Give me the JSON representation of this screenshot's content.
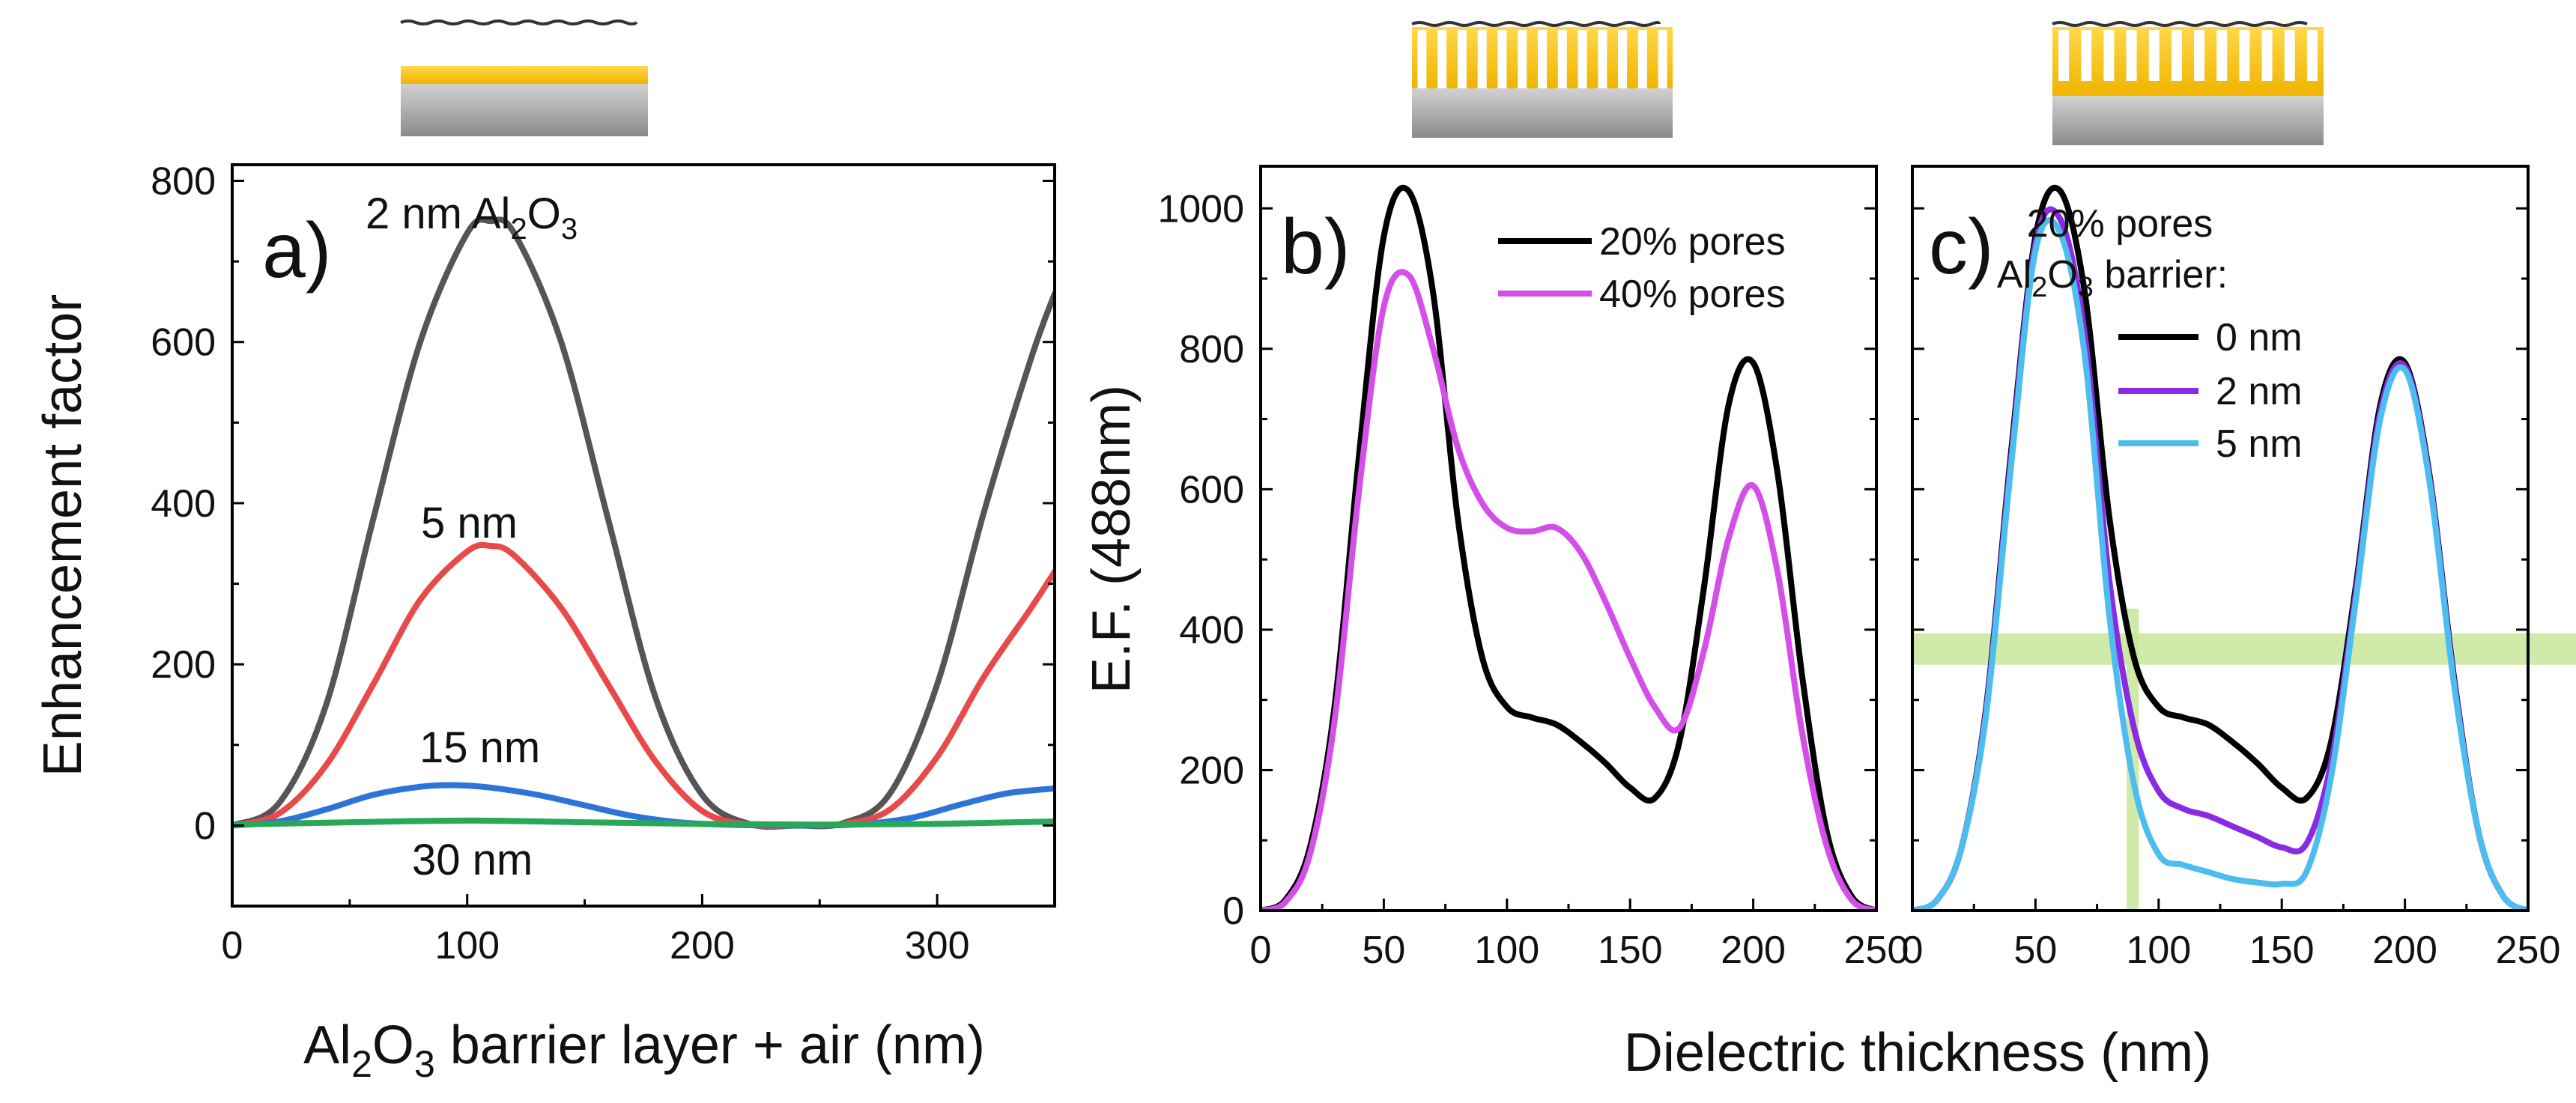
{
  "chart_data": [
    {
      "id": "a",
      "type": "line",
      "panel_label": "a)",
      "xlabel": "Al2O3 barrier layer + air (nm)",
      "ylabel": "Enhancement factor",
      "xlim": [
        0,
        350
      ],
      "ylim": [
        -100,
        820
      ],
      "xticks": [
        0,
        100,
        200,
        300
      ],
      "yticks": [
        0,
        200,
        400,
        600,
        800
      ],
      "series": [
        {
          "name": "2 nm Al2O3",
          "color": "#555555",
          "x": [
            0,
            20,
            40,
            60,
            80,
            100,
            110,
            120,
            140,
            160,
            180,
            200,
            220,
            240,
            260,
            280,
            300,
            320,
            340,
            350
          ],
          "y": [
            0,
            28,
            150,
            380,
            600,
            735,
            750,
            735,
            600,
            380,
            160,
            38,
            2,
            0,
            3,
            40,
            175,
            390,
            580,
            660
          ]
        },
        {
          "name": "5 nm",
          "color": "#e84a4a",
          "x": [
            0,
            20,
            40,
            60,
            80,
            100,
            110,
            120,
            140,
            160,
            180,
            200,
            220,
            240,
            260,
            280,
            300,
            320,
            340,
            350
          ],
          "y": [
            0,
            15,
            75,
            175,
            280,
            340,
            347,
            335,
            270,
            175,
            80,
            18,
            1,
            0,
            2,
            20,
            85,
            185,
            270,
            315
          ]
        },
        {
          "name": "15 nm",
          "color": "#2d74d8",
          "x": [
            0,
            20,
            40,
            60,
            80,
            95,
            110,
            130,
            150,
            170,
            190,
            210,
            230,
            250,
            270,
            290,
            310,
            330,
            350
          ],
          "y": [
            0,
            5,
            20,
            38,
            48,
            50,
            47,
            38,
            25,
            12,
            4,
            1,
            0,
            0,
            2,
            10,
            26,
            40,
            46
          ]
        },
        {
          "name": "30 nm",
          "color": "#2aa85a",
          "x": [
            0,
            50,
            100,
            150,
            200,
            250,
            300,
            350
          ],
          "y": [
            1,
            4,
            6,
            4,
            2,
            1,
            2,
            5
          ]
        }
      ],
      "annotations": [
        {
          "text": "2 nm Al2O3"
        },
        {
          "text": "5 nm"
        },
        {
          "text": "15 nm"
        },
        {
          "text": "30 nm"
        }
      ]
    },
    {
      "id": "b",
      "type": "line",
      "panel_label": "b)",
      "ylabel": "E.F. (488nm)",
      "xlim": [
        0,
        250
      ],
      "ylim": [
        0,
        1060
      ],
      "xticks": [
        0,
        50,
        100,
        150,
        200,
        250
      ],
      "yticks": [
        0,
        200,
        400,
        600,
        800,
        1000
      ],
      "legend": "top-right",
      "series": [
        {
          "name": "20% pores",
          "color": "#000000",
          "x": [
            0,
            10,
            20,
            30,
            40,
            50,
            60,
            70,
            80,
            90,
            100,
            110,
            120,
            130,
            140,
            150,
            160,
            170,
            180,
            190,
            200,
            210,
            220,
            230,
            240,
            250
          ],
          "y": [
            0,
            15,
            90,
            290,
            650,
            960,
            1025,
            880,
            560,
            360,
            290,
            275,
            265,
            240,
            210,
            175,
            160,
            240,
            460,
            720,
            780,
            620,
            330,
            110,
            20,
            0
          ]
        },
        {
          "name": "40% pores",
          "color": "#d44ee8",
          "x": [
            0,
            10,
            20,
            30,
            40,
            50,
            60,
            70,
            80,
            90,
            100,
            110,
            120,
            130,
            140,
            150,
            160,
            170,
            180,
            190,
            200,
            210,
            220,
            230,
            240,
            250
          ],
          "y": [
            0,
            12,
            80,
            270,
            600,
            860,
            905,
            800,
            660,
            580,
            545,
            540,
            545,
            510,
            440,
            360,
            290,
            260,
            370,
            530,
            605,
            480,
            250,
            90,
            15,
            0
          ]
        }
      ]
    },
    {
      "id": "c",
      "type": "line",
      "panel_label": "c)",
      "xlim": [
        0,
        250
      ],
      "ylim": [
        0,
        1060
      ],
      "xticks": [
        0,
        50,
        100,
        150,
        200,
        250
      ],
      "yticks": [
        0,
        200,
        400,
        600,
        800,
        1000
      ],
      "legend": "top-center",
      "legend_title": [
        "20% pores",
        "Al2O3 barrier:"
      ],
      "series": [
        {
          "name": "0 nm",
          "color": "#000000",
          "x": [
            0,
            10,
            20,
            30,
            40,
            50,
            60,
            70,
            80,
            90,
            100,
            110,
            120,
            130,
            140,
            150,
            160,
            170,
            180,
            190,
            200,
            210,
            220,
            230,
            240,
            250
          ],
          "y": [
            0,
            15,
            90,
            290,
            650,
            960,
            1025,
            880,
            560,
            360,
            290,
            275,
            265,
            240,
            210,
            175,
            160,
            240,
            460,
            720,
            780,
            620,
            330,
            110,
            20,
            0
          ]
        },
        {
          "name": "2 nm",
          "color": "#8a2be2",
          "x": [
            0,
            10,
            20,
            30,
            40,
            50,
            60,
            70,
            80,
            90,
            100,
            110,
            120,
            130,
            140,
            150,
            160,
            170,
            180,
            190,
            200,
            210,
            220,
            230,
            240,
            250
          ],
          "y": [
            0,
            15,
            90,
            285,
            640,
            950,
            985,
            820,
            470,
            260,
            170,
            145,
            135,
            120,
            105,
            90,
            95,
            210,
            450,
            710,
            775,
            615,
            325,
            110,
            20,
            0
          ]
        },
        {
          "name": "5 nm",
          "color": "#4dbdf0",
          "x": [
            0,
            10,
            20,
            30,
            40,
            50,
            60,
            70,
            80,
            90,
            100,
            110,
            120,
            130,
            140,
            150,
            160,
            170,
            180,
            190,
            200,
            210,
            220,
            230,
            240,
            250
          ],
          "y": [
            0,
            15,
            90,
            280,
            630,
            940,
            965,
            790,
            420,
            180,
            80,
            65,
            55,
            45,
            40,
            38,
            55,
            190,
            440,
            700,
            770,
            610,
            320,
            110,
            20,
            0
          ]
        }
      ],
      "highlights": [
        {
          "orientation": "horizontal",
          "y_from": 350,
          "y_to": 395,
          "color": "#c8e89a"
        },
        {
          "orientation": "vertical",
          "x_from": 87,
          "x_to": 92,
          "y_from": 0,
          "y_to": 430,
          "color": "#c8e89a"
        }
      ]
    }
  ],
  "shared_xlabel": "Dielectric thickness (nm)",
  "labels": {
    "a_letter": "a)",
    "b_letter": "b)",
    "c_letter": "c)",
    "a_xlabel_pre": "Al",
    "a_xlabel_sub1": "2",
    "a_xlabel_mid": "O",
    "a_xlabel_sub2": "3",
    "a_xlabel_post": " barrier layer + air (nm)",
    "a_ylabel": "Enhancement factor",
    "b_ylabel": "E.F. (488nm)",
    "shared_xlabel": "Dielectric thickness (nm)",
    "ann_2nm_pre": "2 nm Al",
    "ann_2nm_sub1": "2",
    "ann_2nm_mid": "O",
    "ann_2nm_sub2": "3",
    "ann_5nm": "5 nm",
    "ann_15nm": "15 nm",
    "ann_30nm": "30 nm",
    "b_leg1": "20% pores",
    "b_leg2": "40% pores",
    "c_title1": "20% pores",
    "c_title2_pre": "Al",
    "c_title2_sub1": "2",
    "c_title2_mid": "O",
    "c_title2_sub2": "3",
    "c_title2_post": " barrier:",
    "c_leg1": "0 nm",
    "c_leg2": "2 nm",
    "c_leg3": "5 nm"
  },
  "colors": {
    "gold": "#f5c000",
    "substrate_top": "#cfcfcf",
    "substrate_bottom": "#8c8c8c",
    "highlight": "#c8e89a"
  }
}
